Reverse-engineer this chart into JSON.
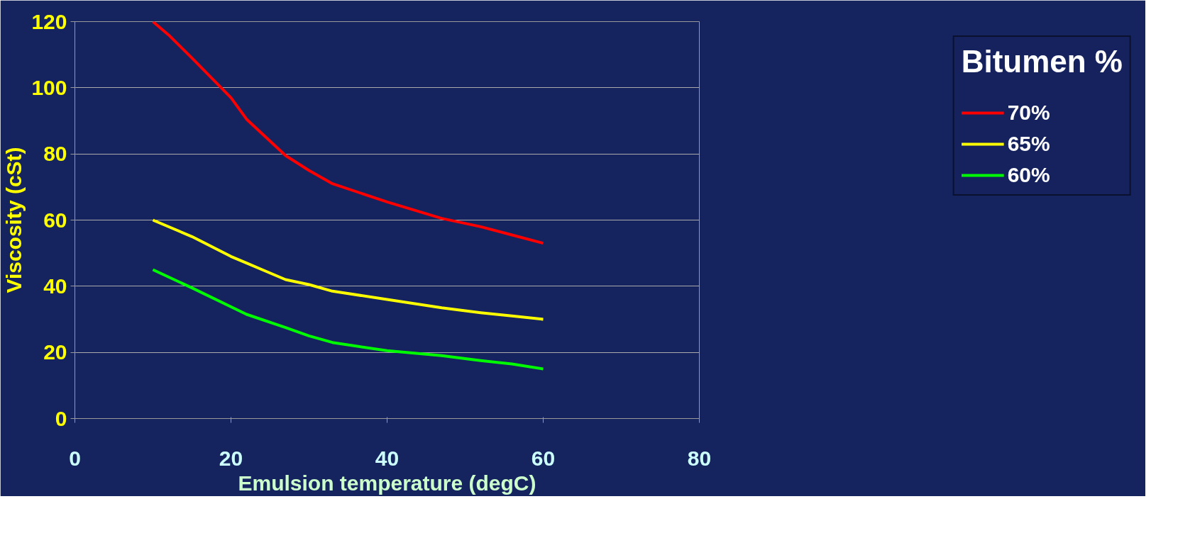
{
  "chart_data": {
    "type": "line",
    "xlabel": "Emulsion temperature (degC)",
    "ylabel": "Viscosity (cSt)",
    "legend_title": "Bitumen %",
    "xlim": [
      0,
      80
    ],
    "xticks": [
      0,
      20,
      40,
      60,
      80
    ],
    "ylim": [
      0,
      120
    ],
    "yticks": [
      0,
      20,
      40,
      60,
      80,
      100,
      120
    ],
    "grid": "y",
    "legend": "right",
    "marker": "none",
    "line_style": "solid",
    "series": [
      {
        "name": "70%",
        "color": "#ff0000",
        "x": [
          10,
          12,
          15,
          20,
          22,
          27,
          30,
          33,
          40,
          47,
          52,
          56,
          60
        ],
        "values": [
          120,
          116,
          109,
          97,
          90.5,
          79.5,
          75,
          71,
          65.5,
          60.5,
          58,
          55.5,
          53
        ]
      },
      {
        "name": "65%",
        "color": "#ffff00",
        "x": [
          10,
          15,
          20,
          22,
          24,
          27,
          30,
          33,
          40,
          47,
          52,
          56,
          60
        ],
        "values": [
          60,
          55,
          49,
          47,
          45,
          42,
          40.5,
          38.5,
          36,
          33.5,
          32,
          31,
          30
        ]
      },
      {
        "name": "60%",
        "color": "#00ff00",
        "x": [
          10,
          15,
          22,
          27,
          30,
          33,
          40,
          47,
          52,
          56,
          60
        ],
        "values": [
          45,
          39.5,
          31.5,
          27.5,
          25,
          23,
          20.5,
          19,
          17.5,
          16.5,
          15
        ]
      }
    ]
  }
}
